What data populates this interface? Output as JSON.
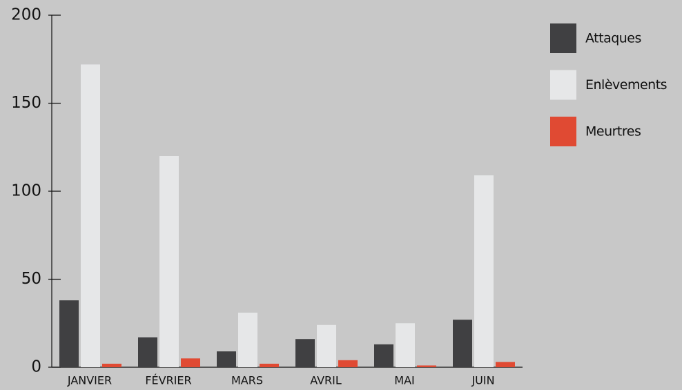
{
  "chart_data": {
    "type": "bar",
    "categories": [
      "JANVIER",
      "FÉVRIER",
      "MARS",
      "AVRIL",
      "MAI",
      "JUIN"
    ],
    "series": [
      {
        "name": "Attaques",
        "color": "#404042",
        "values": [
          38,
          17,
          9,
          16,
          13,
          27
        ]
      },
      {
        "name": "Enlèvements",
        "color": "#e6e7e8",
        "values": [
          172,
          120,
          31,
          24,
          25,
          109
        ]
      },
      {
        "name": "Meurtres",
        "color": "#e04a33",
        "values": [
          2,
          5,
          2,
          4,
          1,
          3
        ]
      }
    ],
    "ylim": [
      0,
      200
    ],
    "yticks": [
      0,
      50,
      100,
      150,
      200
    ],
    "legend": "right"
  }
}
